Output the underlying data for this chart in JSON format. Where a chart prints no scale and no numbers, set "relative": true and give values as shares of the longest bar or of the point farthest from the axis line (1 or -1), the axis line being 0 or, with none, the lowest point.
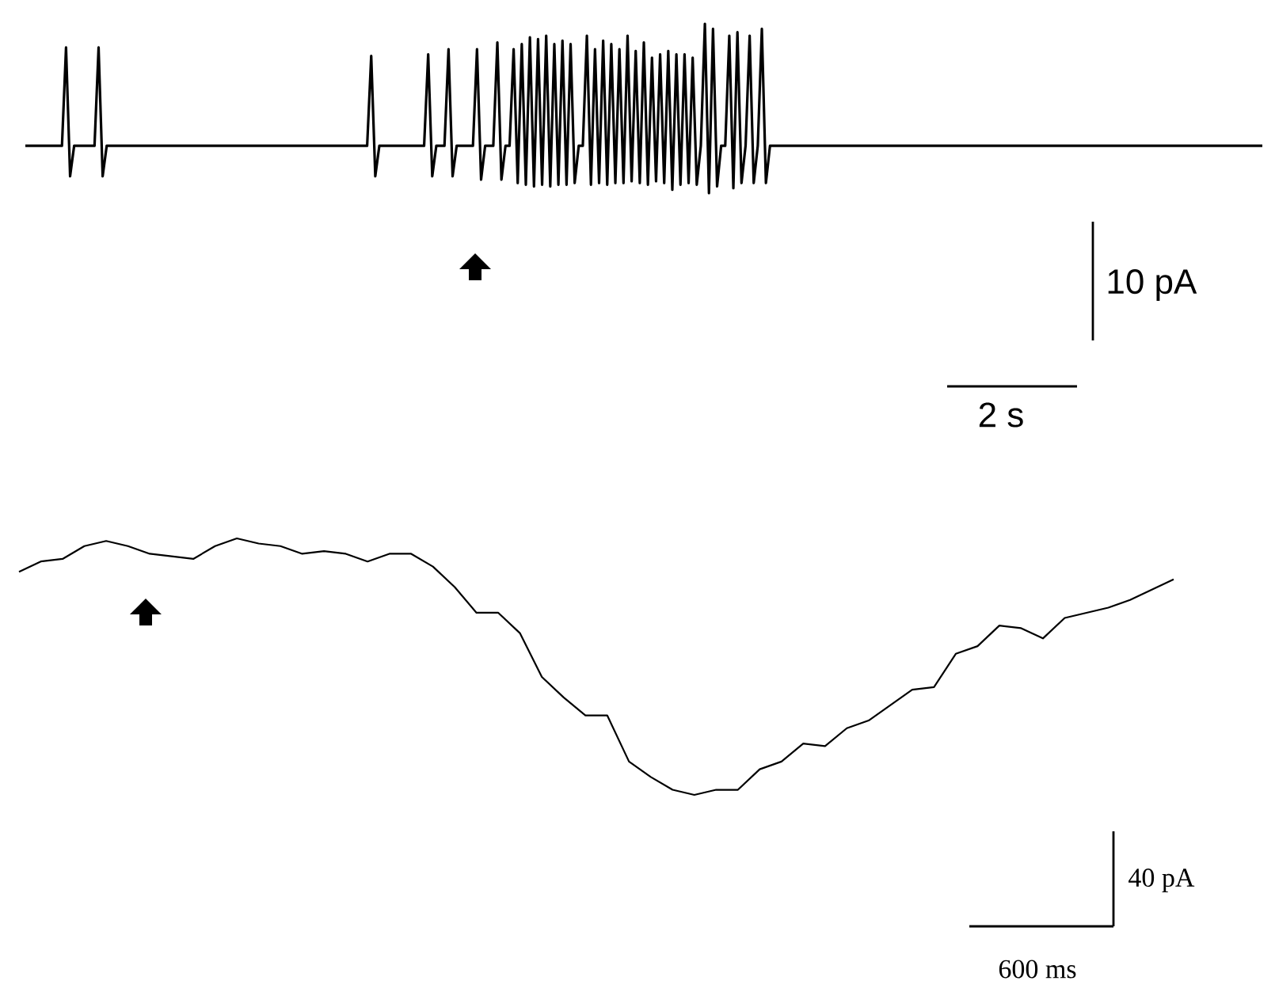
{
  "chart_data": [
    {
      "type": "line",
      "relative": true,
      "tick_labels": false,
      "annotations": [
        "10 pA",
        "2 s"
      ],
      "categories": [
        null,
        null,
        null,
        null,
        null,
        null,
        null,
        null,
        null,
        null,
        null,
        null,
        null,
        null,
        null,
        null,
        null,
        null,
        null,
        null,
        null,
        null,
        null,
        null,
        null,
        null,
        null,
        null,
        null,
        null,
        null,
        null,
        null,
        null,
        null,
        null,
        null,
        null,
        null,
        null,
        null,
        null,
        null,
        null,
        null,
        null,
        null,
        null,
        null,
        null,
        null,
        null,
        null,
        null,
        null,
        null,
        null,
        null,
        null,
        null,
        null,
        null,
        null,
        null,
        null,
        null,
        null,
        null,
        null,
        null,
        null,
        null,
        null,
        null,
        null,
        null,
        null,
        null,
        null,
        null,
        null,
        null,
        null,
        null,
        null,
        null,
        null,
        null,
        null,
        null,
        null,
        null,
        null,
        null,
        null,
        null,
        null,
        null,
        null,
        null,
        null,
        null,
        null,
        null,
        null,
        null,
        null,
        null,
        null,
        null,
        null,
        null,
        null,
        null,
        null,
        null,
        null,
        null,
        null,
        null,
        null,
        null,
        null,
        null,
        null,
        null,
        null,
        null,
        null,
        null,
        null,
        null,
        null,
        null,
        null,
        null,
        null,
        null,
        null,
        null,
        null,
        null,
        null,
        null,
        null,
        null,
        null,
        null,
        null,
        null,
        null,
        null,
        null,
        null,
        null,
        null,
        null,
        null,
        null,
        null,
        null,
        null,
        null,
        null,
        null,
        null,
        null,
        null,
        null,
        null,
        null,
        null,
        null,
        null,
        null,
        null,
        null,
        null,
        null,
        null,
        null,
        null,
        null,
        null,
        null,
        null,
        null,
        null,
        null,
        null,
        null,
        null,
        null,
        null,
        null,
        null,
        null,
        null,
        null,
        null,
        null,
        null,
        null,
        null,
        null,
        null,
        null,
        null,
        null,
        null,
        null,
        null,
        null,
        null,
        null,
        null,
        null,
        null,
        null,
        null,
        null,
        null,
        null,
        null,
        null,
        null,
        null,
        null,
        null,
        null,
        null,
        null,
        null,
        null,
        null,
        null,
        null,
        null,
        null,
        null,
        null,
        null,
        null,
        null,
        null,
        null,
        null,
        null,
        null,
        null,
        null,
        null,
        null,
        null,
        null,
        null,
        null,
        null,
        null,
        null,
        null,
        null,
        null,
        null,
        null,
        null,
        null,
        null,
        null,
        null,
        null,
        null,
        null,
        null,
        null,
        null,
        null,
        null,
        null,
        null,
        null,
        null,
        null,
        null,
        null,
        null,
        null,
        null,
        null,
        null,
        null,
        null,
        null,
        null,
        null,
        null,
        null,
        null,
        null,
        null,
        null,
        null,
        null,
        null,
        null
      ],
      "series": [
        {
          "color": "#000000",
          "values": [
            0.28,
            0.28,
            0.28,
            0.28,
            0.28,
            0.28,
            0.28,
            0.28,
            0.28,
            0.28,
            0.86,
            0.1,
            0.28,
            0.28,
            0.28,
            0.28,
            0.28,
            0.28,
            0.86,
            0.1,
            0.28,
            0.28,
            0.28,
            0.28,
            0.28,
            0.28,
            0.28,
            0.28,
            0.28,
            0.28,
            0.28,
            0.28,
            0.28,
            0.28,
            0.28,
            0.28,
            0.28,
            0.28,
            0.28,
            0.28,
            0.28,
            0.28,
            0.28,
            0.28,
            0.28,
            0.28,
            0.28,
            0.28,
            0.28,
            0.28,
            0.28,
            0.28,
            0.28,
            0.28,
            0.28,
            0.28,
            0.28,
            0.28,
            0.28,
            0.28,
            0.28,
            0.28,
            0.28,
            0.28,
            0.28,
            0.28,
            0.28,
            0.28,
            0.28,
            0.28,
            0.28,
            0.28,
            0.28,
            0.28,
            0.28,
            0.28,
            0.28,
            0.28,
            0.28,
            0.28,
            0.28,
            0.28,
            0.28,
            0.28,
            0.28,
            0.81,
            0.1,
            0.28,
            0.28,
            0.28,
            0.28,
            0.28,
            0.28,
            0.28,
            0.28,
            0.28,
            0.28,
            0.28,
            0.28,
            0.82,
            0.1,
            0.28,
            0.28,
            0.28,
            0.85,
            0.1,
            0.28,
            0.28,
            0.28,
            0.28,
            0.28,
            0.85,
            0.08,
            0.28,
            0.28,
            0.28,
            0.89,
            0.08,
            0.28,
            0.28,
            0.85,
            0.06,
            0.88,
            0.05,
            0.92,
            0.04,
            0.91,
            0.05,
            0.93,
            0.04,
            0.88,
            0.05,
            0.9,
            0.05,
            0.88,
            0.06,
            0.28,
            0.28,
            0.93,
            0.05,
            0.85,
            0.06,
            0.9,
            0.05,
            0.88,
            0.06,
            0.85,
            0.06,
            0.93,
            0.07,
            0.84,
            0.06,
            0.89,
            0.05,
            0.8,
            0.07,
            0.82,
            0.06,
            0.84,
            0.02,
            0.82,
            0.05,
            0.82,
            0.06,
            0.8,
            0.05,
            0.28,
            1.0,
            0.0,
            0.97,
            0.04,
            0.28,
            0.28,
            0.93,
            0.03,
            0.95,
            0.06,
            0.28,
            0.93,
            0.06,
            0.28,
            0.97,
            0.06,
            0.28,
            0.28,
            0.28,
            0.28,
            0.28,
            0.28,
            0.28,
            0.28,
            0.28,
            0.28,
            0.28,
            0.28,
            0.28,
            0.28,
            0.28,
            0.28,
            0.28,
            0.28,
            0.28,
            0.28,
            0.28,
            0.28,
            0.28,
            0.28,
            0.28,
            0.28,
            0.28,
            0.28,
            0.28,
            0.28,
            0.28,
            0.28,
            0.28,
            0.28,
            0.28,
            0.28,
            0.28,
            0.28,
            0.28,
            0.28,
            0.28,
            0.28,
            0.28,
            0.28,
            0.28,
            0.28,
            0.28,
            0.28,
            0.28,
            0.28,
            0.28,
            0.28,
            0.28,
            0.28,
            0.28,
            0.28,
            0.28,
            0.28,
            0.28,
            0.28,
            0.28,
            0.28,
            0.28,
            0.28,
            0.28,
            0.28,
            0.28,
            0.28,
            0.28,
            0.28,
            0.28,
            0.28,
            0.28,
            0.28,
            0.28,
            0.28,
            0.28,
            0.28,
            0.28,
            0.28,
            0.28,
            0.28,
            0.28,
            0.28,
            0.28,
            0.28,
            0.28,
            0.28,
            0.28,
            0.28,
            0.28,
            0.28,
            0.28,
            0.28,
            0.28,
            0.28,
            0.28,
            0.28,
            0.28,
            0.28,
            0.28,
            0.28,
            0.28,
            0.28,
            0.28,
            0.28,
            0.28,
            0.28,
            0.28,
            0.28,
            0.28,
            0.28,
            0.28,
            0.28,
            0.28,
            0.28,
            0.28,
            0.28,
            0.28,
            0.28,
            0.28,
            0.28
          ]
        }
      ]
    },
    {
      "type": "line",
      "relative": true,
      "tick_labels": false,
      "annotations": [
        "40 pA",
        "600 ms"
      ],
      "categories": [
        null,
        null,
        null,
        null,
        null,
        null,
        null,
        null,
        null,
        null,
        null,
        null,
        null,
        null,
        null,
        null,
        null,
        null,
        null,
        null,
        null,
        null,
        null,
        null,
        null,
        null,
        null,
        null,
        null,
        null,
        null,
        null,
        null,
        null,
        null,
        null,
        null,
        null,
        null,
        null,
        null,
        null,
        null,
        null,
        null,
        null,
        null,
        null,
        null,
        null,
        null,
        null,
        null,
        null
      ],
      "series": [
        {
          "color": "#000000",
          "values": [
            0.87,
            0.91,
            0.92,
            0.97,
            0.99,
            0.97,
            0.94,
            0.93,
            0.92,
            0.97,
            1.0,
            0.98,
            0.97,
            0.94,
            0.95,
            0.94,
            0.91,
            0.94,
            0.94,
            0.89,
            0.81,
            0.71,
            0.71,
            0.63,
            0.46,
            0.38,
            0.31,
            0.31,
            0.13,
            0.07,
            0.02,
            0.0,
            0.02,
            0.02,
            0.1,
            0.13,
            0.2,
            0.19,
            0.26,
            0.29,
            0.35,
            0.41,
            0.42,
            0.55,
            0.58,
            0.66,
            0.65,
            0.61,
            0.69,
            0.71,
            0.73,
            0.76,
            0.8,
            0.84
          ]
        }
      ]
    }
  ]
}
